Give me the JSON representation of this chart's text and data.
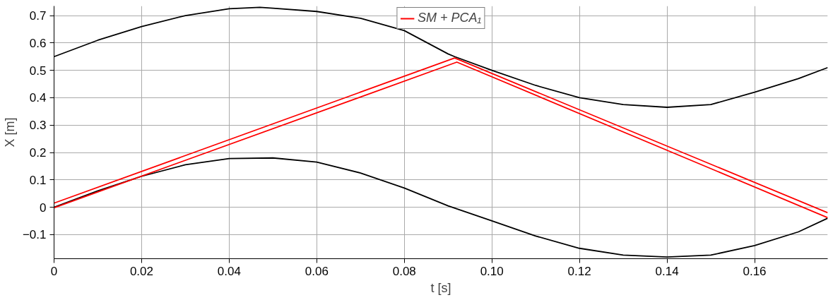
{
  "chart_data": {
    "type": "line",
    "xlabel": "t [s]",
    "ylabel": "X [m]",
    "xlim": [
      0,
      0.1767
    ],
    "ylim": [
      -0.188,
      0.735
    ],
    "xticks": [
      0,
      0.02,
      0.04,
      0.06,
      0.08,
      {
        "value": 0.1,
        "label": "0.10"
      },
      0.12,
      0.14,
      0.16
    ],
    "yticks": [
      {
        "value": -0.1,
        "label": "−0.1"
      },
      0,
      0.1,
      0.2,
      0.3,
      0.4,
      0.5,
      0.6,
      0.7
    ],
    "grid": true,
    "legend": "top",
    "line_style": "solid",
    "marker": "none",
    "series": [
      {
        "color": "#000000",
        "x": [
          0,
          0.01,
          0.02,
          0.03,
          0.04,
          0.047,
          0.05,
          0.06,
          0.07,
          0.08,
          0.09,
          0.0915,
          0.1,
          0.11,
          0.12,
          0.13,
          0.14,
          0.15,
          0.16,
          0.17,
          0.1767
        ],
        "values": [
          0.55,
          0.61,
          0.66,
          0.7,
          0.725,
          0.73,
          0.727,
          0.715,
          0.69,
          0.645,
          0.56,
          0.55,
          0.5,
          0.445,
          0.4,
          0.375,
          0.365,
          0.375,
          0.42,
          0.47,
          0.51
        ]
      },
      {
        "color": "#000000",
        "x": [
          0,
          0.01,
          0.02,
          0.03,
          0.04,
          0.05,
          0.06,
          0.07,
          0.08,
          0.09,
          0.1,
          0.11,
          0.12,
          0.13,
          0.14,
          0.15,
          0.16,
          0.17,
          0.1767
        ],
        "values": [
          0,
          0.06,
          0.113,
          0.155,
          0.178,
          0.18,
          0.165,
          0.125,
          0.07,
          0.005,
          -0.05,
          -0.105,
          -0.15,
          -0.175,
          -0.182,
          -0.175,
          -0.14,
          -0.09,
          -0.04
        ]
      },
      {
        "name": "SM + PCA₁",
        "color": "#ff0000",
        "x": [
          0,
          0.0915,
          0.1767
        ],
        "values": [
          0.015,
          0.545,
          -0.02
        ]
      },
      {
        "color": "#ff0000",
        "x": [
          0,
          0.092,
          0.1767
        ],
        "values": [
          -0.002,
          0.53,
          -0.038
        ]
      }
    ]
  }
}
